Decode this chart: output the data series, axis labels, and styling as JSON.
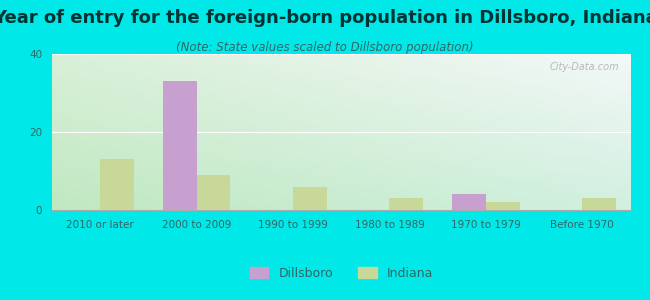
{
  "title": "Year of entry for the foreign-born population in Dillsboro, Indiana",
  "subtitle": "(Note: State values scaled to Dillsboro population)",
  "categories": [
    "2010 or later",
    "2000 to 2009",
    "1990 to 1999",
    "1980 to 1989",
    "1970 to 1979",
    "Before 1970"
  ],
  "dillsboro_values": [
    0,
    33,
    0,
    0,
    4,
    0
  ],
  "indiana_values": [
    13,
    9,
    6,
    3,
    2,
    3
  ],
  "dillsboro_color": "#c8a0d0",
  "indiana_color": "#c8d898",
  "background_outer": "#00e8e8",
  "ylim": [
    0,
    40
  ],
  "yticks": [
    0,
    20,
    40
  ],
  "bar_width": 0.35,
  "title_fontsize": 13,
  "subtitle_fontsize": 8.5,
  "tick_fontsize": 7.5,
  "legend_fontsize": 9,
  "title_color": "#003333",
  "subtitle_color": "#336666",
  "tick_color": "#336666"
}
